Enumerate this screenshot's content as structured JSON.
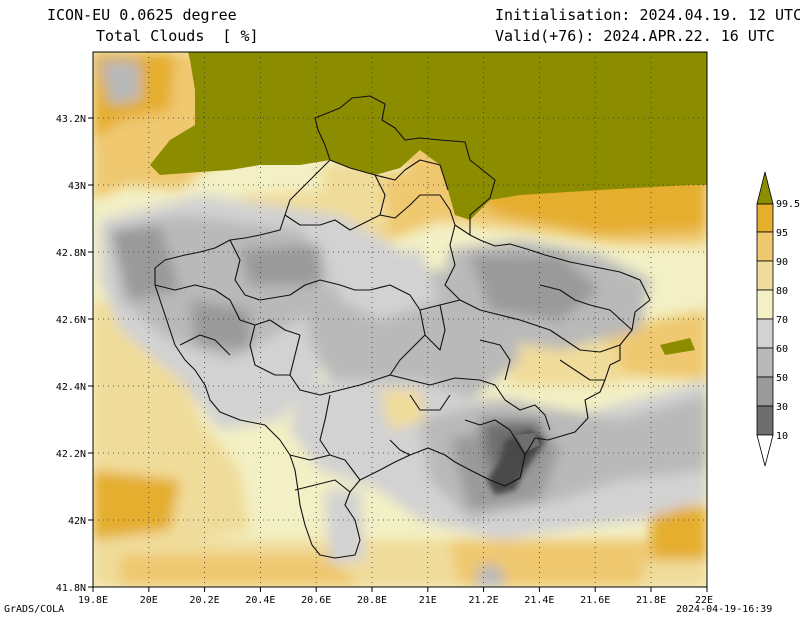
{
  "header": {
    "model": "ICON-EU 0.0625 degree",
    "field": "Total Clouds  [ %]",
    "init": "Initialisation: 2024.04.19. 12 UTC",
    "valid": "Valid(+76): 2024.APR.22. 16 UTC"
  },
  "footer": {
    "left": "GrADS/COLA",
    "right": "2024-04-19-16:39"
  },
  "map": {
    "x_ticks": [
      "19.8E",
      "20E",
      "20.2E",
      "20.4E",
      "20.6E",
      "20.8E",
      "21E",
      "21.2E",
      "21.4E",
      "21.6E",
      "21.8E",
      "22E"
    ],
    "y_ticks": [
      "43.2N",
      "43N",
      "42.8N",
      "42.6N",
      "42.4N",
      "42.2N",
      "42N",
      "41.8N"
    ]
  },
  "colorbar": {
    "levels": [
      "99.5",
      "95",
      "90",
      "80",
      "70",
      "60",
      "50",
      "30",
      "10"
    ],
    "colors": [
      "#8c8c00",
      "#e5ae2d",
      "#efc86f",
      "#f0dc9a",
      "#f3f0c5",
      "#d2d2d2",
      "#b9b9b9",
      "#9a9a9a",
      "#6e6e6e",
      "#4a4a4a"
    ]
  }
}
